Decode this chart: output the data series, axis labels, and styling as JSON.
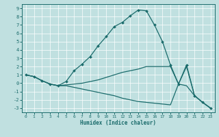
{
  "xlabel": "Humidex (Indice chaleur)",
  "xlim": [
    -0.5,
    23.5
  ],
  "ylim": [
    -3.5,
    9.5
  ],
  "xticks": [
    0,
    1,
    2,
    3,
    4,
    5,
    6,
    7,
    8,
    9,
    10,
    11,
    12,
    13,
    14,
    15,
    16,
    17,
    18,
    19,
    20,
    21,
    22,
    23
  ],
  "yticks": [
    -3,
    -2,
    -1,
    0,
    1,
    2,
    3,
    4,
    5,
    6,
    7,
    8,
    9
  ],
  "bg_color": "#c0e0e0",
  "line_color": "#1a6b6b",
  "grid_color": "#ffffff",
  "line1_x": [
    0,
    1,
    2,
    3,
    4,
    5,
    6,
    7,
    8,
    9,
    10,
    11,
    12,
    13,
    14,
    15,
    16,
    17,
    18,
    19,
    20,
    21,
    22,
    23
  ],
  "line1_y": [
    1.0,
    0.8,
    0.3,
    -0.1,
    -0.3,
    0.2,
    1.5,
    2.3,
    3.2,
    4.5,
    5.6,
    6.8,
    7.3,
    8.1,
    8.8,
    8.7,
    7.0,
    5.0,
    2.2,
    -0.1,
    2.2,
    -1.5,
    -2.3,
    -3.0
  ],
  "line2_x": [
    0,
    1,
    2,
    3,
    4,
    5,
    6,
    7,
    8,
    9,
    10,
    11,
    12,
    13,
    14,
    15,
    16,
    17,
    18,
    19,
    20,
    21,
    22,
    23
  ],
  "line2_y": [
    1.0,
    0.8,
    0.3,
    -0.1,
    -0.3,
    -0.2,
    -0.1,
    0.0,
    0.2,
    0.4,
    0.7,
    1.0,
    1.3,
    1.5,
    1.7,
    2.0,
    2.0,
    2.0,
    2.0,
    -0.1,
    2.0,
    -1.5,
    -2.3,
    -3.0
  ],
  "line3_x": [
    0,
    1,
    2,
    3,
    4,
    5,
    6,
    7,
    8,
    9,
    10,
    11,
    12,
    13,
    14,
    15,
    16,
    17,
    18,
    19,
    20,
    21,
    22,
    23
  ],
  "line3_y": [
    1.0,
    0.8,
    0.3,
    -0.1,
    -0.3,
    -0.3,
    -0.5,
    -0.7,
    -0.9,
    -1.1,
    -1.3,
    -1.5,
    -1.8,
    -2.0,
    -2.2,
    -2.3,
    -2.4,
    -2.5,
    -2.6,
    -0.1,
    -0.3,
    -1.5,
    -2.3,
    -3.0
  ]
}
